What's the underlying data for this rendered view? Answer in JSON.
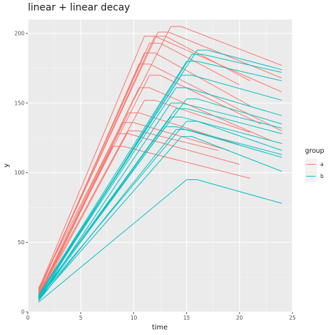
{
  "chart_data": {
    "type": "line",
    "title": "linear + linear decay",
    "xlabel": "time",
    "ylabel": "y",
    "xlim": [
      0,
      25
    ],
    "ylim": [
      0,
      210
    ],
    "x_ticks": [
      "0",
      "5",
      "10",
      "15",
      "20",
      "25"
    ],
    "y_ticks": [
      "0",
      "50",
      "100",
      "150",
      "200"
    ],
    "grid": true,
    "legend": {
      "title": "group",
      "position": "right",
      "entries": [
        {
          "label": "a",
          "color": "#F8766D"
        },
        {
          "label": "b",
          "color": "#00BFC4"
        }
      ]
    },
    "series": [
      {
        "group": "a",
        "points": [
          [
            1,
            17
          ],
          [
            13.5,
            205
          ],
          [
            14.5,
            205
          ],
          [
            24,
            177
          ]
        ]
      },
      {
        "group": "a",
        "points": [
          [
            1,
            16
          ],
          [
            12.3,
            201
          ],
          [
            13.3,
            201
          ],
          [
            24,
            168
          ]
        ]
      },
      {
        "group": "a",
        "points": [
          [
            1,
            16
          ],
          [
            11,
            198
          ],
          [
            12,
            198
          ],
          [
            24,
            158
          ]
        ]
      },
      {
        "group": "a",
        "points": [
          [
            1,
            15
          ],
          [
            12,
            198
          ],
          [
            13,
            198
          ],
          [
            21,
            166
          ]
        ]
      },
      {
        "group": "a",
        "points": [
          [
            1,
            15
          ],
          [
            11.5,
            193
          ],
          [
            12.5,
            193
          ],
          [
            20,
            163
          ]
        ]
      },
      {
        "group": "a",
        "points": [
          [
            1,
            14
          ],
          [
            11,
            186
          ],
          [
            12,
            186
          ],
          [
            21,
            148
          ]
        ]
      },
      {
        "group": "a",
        "points": [
          [
            1,
            14
          ],
          [
            10.5,
            178
          ],
          [
            11.5,
            178
          ],
          [
            24,
            130
          ]
        ]
      },
      {
        "group": "a",
        "points": [
          [
            1,
            13
          ],
          [
            11.5,
            170
          ],
          [
            12.5,
            170
          ],
          [
            22,
            135
          ]
        ]
      },
      {
        "group": "a",
        "points": [
          [
            1,
            13
          ],
          [
            10.5,
            161
          ],
          [
            11.5,
            161
          ],
          [
            23,
            123
          ]
        ]
      },
      {
        "group": "a",
        "points": [
          [
            1,
            12
          ],
          [
            11,
            152
          ],
          [
            12,
            152
          ],
          [
            21,
            129
          ]
        ]
      },
      {
        "group": "a",
        "points": [
          [
            1,
            12
          ],
          [
            9.5,
            143
          ],
          [
            10.5,
            143
          ],
          [
            20,
            120
          ]
        ]
      },
      {
        "group": "a",
        "points": [
          [
            1,
            11
          ],
          [
            9,
            136
          ],
          [
            10,
            136
          ],
          [
            19,
            116
          ]
        ]
      },
      {
        "group": "a",
        "points": [
          [
            1,
            11
          ],
          [
            8.5,
            128
          ],
          [
            9.5,
            128
          ],
          [
            20,
            106
          ]
        ]
      },
      {
        "group": "a",
        "points": [
          [
            1,
            10
          ],
          [
            8,
            119
          ],
          [
            9,
            119
          ],
          [
            21,
            96
          ]
        ]
      },
      {
        "group": "a",
        "points": [
          [
            1,
            10
          ],
          [
            9.5,
            130
          ],
          [
            10.5,
            130
          ],
          [
            18,
            116
          ]
        ]
      },
      {
        "group": "b",
        "points": [
          [
            1,
            12
          ],
          [
            16,
            188
          ],
          [
            17,
            188
          ],
          [
            24,
            174
          ]
        ]
      },
      {
        "group": "b",
        "points": [
          [
            1,
            12
          ],
          [
            15,
            180
          ],
          [
            16,
            180
          ],
          [
            24,
            166
          ]
        ]
      },
      {
        "group": "b",
        "points": [
          [
            1,
            11
          ],
          [
            14.5,
            170
          ],
          [
            15.5,
            170
          ],
          [
            24,
            152
          ]
        ]
      },
      {
        "group": "b",
        "points": [
          [
            1,
            11
          ],
          [
            14,
            161
          ],
          [
            15,
            161
          ],
          [
            24,
            141
          ]
        ]
      },
      {
        "group": "b",
        "points": [
          [
            1,
            11
          ],
          [
            15,
            153
          ],
          [
            16,
            153
          ],
          [
            24,
            135
          ]
        ]
      },
      {
        "group": "b",
        "points": [
          [
            1,
            10
          ],
          [
            14,
            146
          ],
          [
            15,
            146
          ],
          [
            24,
            128
          ]
        ]
      },
      {
        "group": "b",
        "points": [
          [
            1,
            10
          ],
          [
            13.5,
            140
          ],
          [
            14.5,
            140
          ],
          [
            24,
            121
          ]
        ]
      },
      {
        "group": "b",
        "points": [
          [
            1,
            10
          ],
          [
            15,
            137
          ],
          [
            16,
            137
          ],
          [
            24,
            116
          ]
        ]
      },
      {
        "group": "b",
        "points": [
          [
            1,
            9
          ],
          [
            13,
            133
          ],
          [
            14,
            133
          ],
          [
            24,
            111
          ]
        ]
      },
      {
        "group": "b",
        "points": [
          [
            1,
            9
          ],
          [
            14.5,
            126
          ],
          [
            15.5,
            126
          ],
          [
            24,
            101
          ]
        ]
      },
      {
        "group": "b",
        "points": [
          [
            1,
            9
          ],
          [
            15.5,
            185
          ],
          [
            16.5,
            185
          ],
          [
            24,
            172
          ]
        ]
      },
      {
        "group": "b",
        "points": [
          [
            1,
            8
          ],
          [
            13.5,
            150
          ],
          [
            14.5,
            150
          ],
          [
            24,
            132
          ]
        ]
      },
      {
        "group": "b",
        "points": [
          [
            1,
            8
          ],
          [
            14,
            131
          ],
          [
            15,
            131
          ],
          [
            24,
            113
          ]
        ]
      },
      {
        "group": "b",
        "points": [
          [
            1,
            7
          ],
          [
            15,
            95
          ],
          [
            16,
            95
          ],
          [
            24,
            78
          ]
        ]
      }
    ]
  }
}
